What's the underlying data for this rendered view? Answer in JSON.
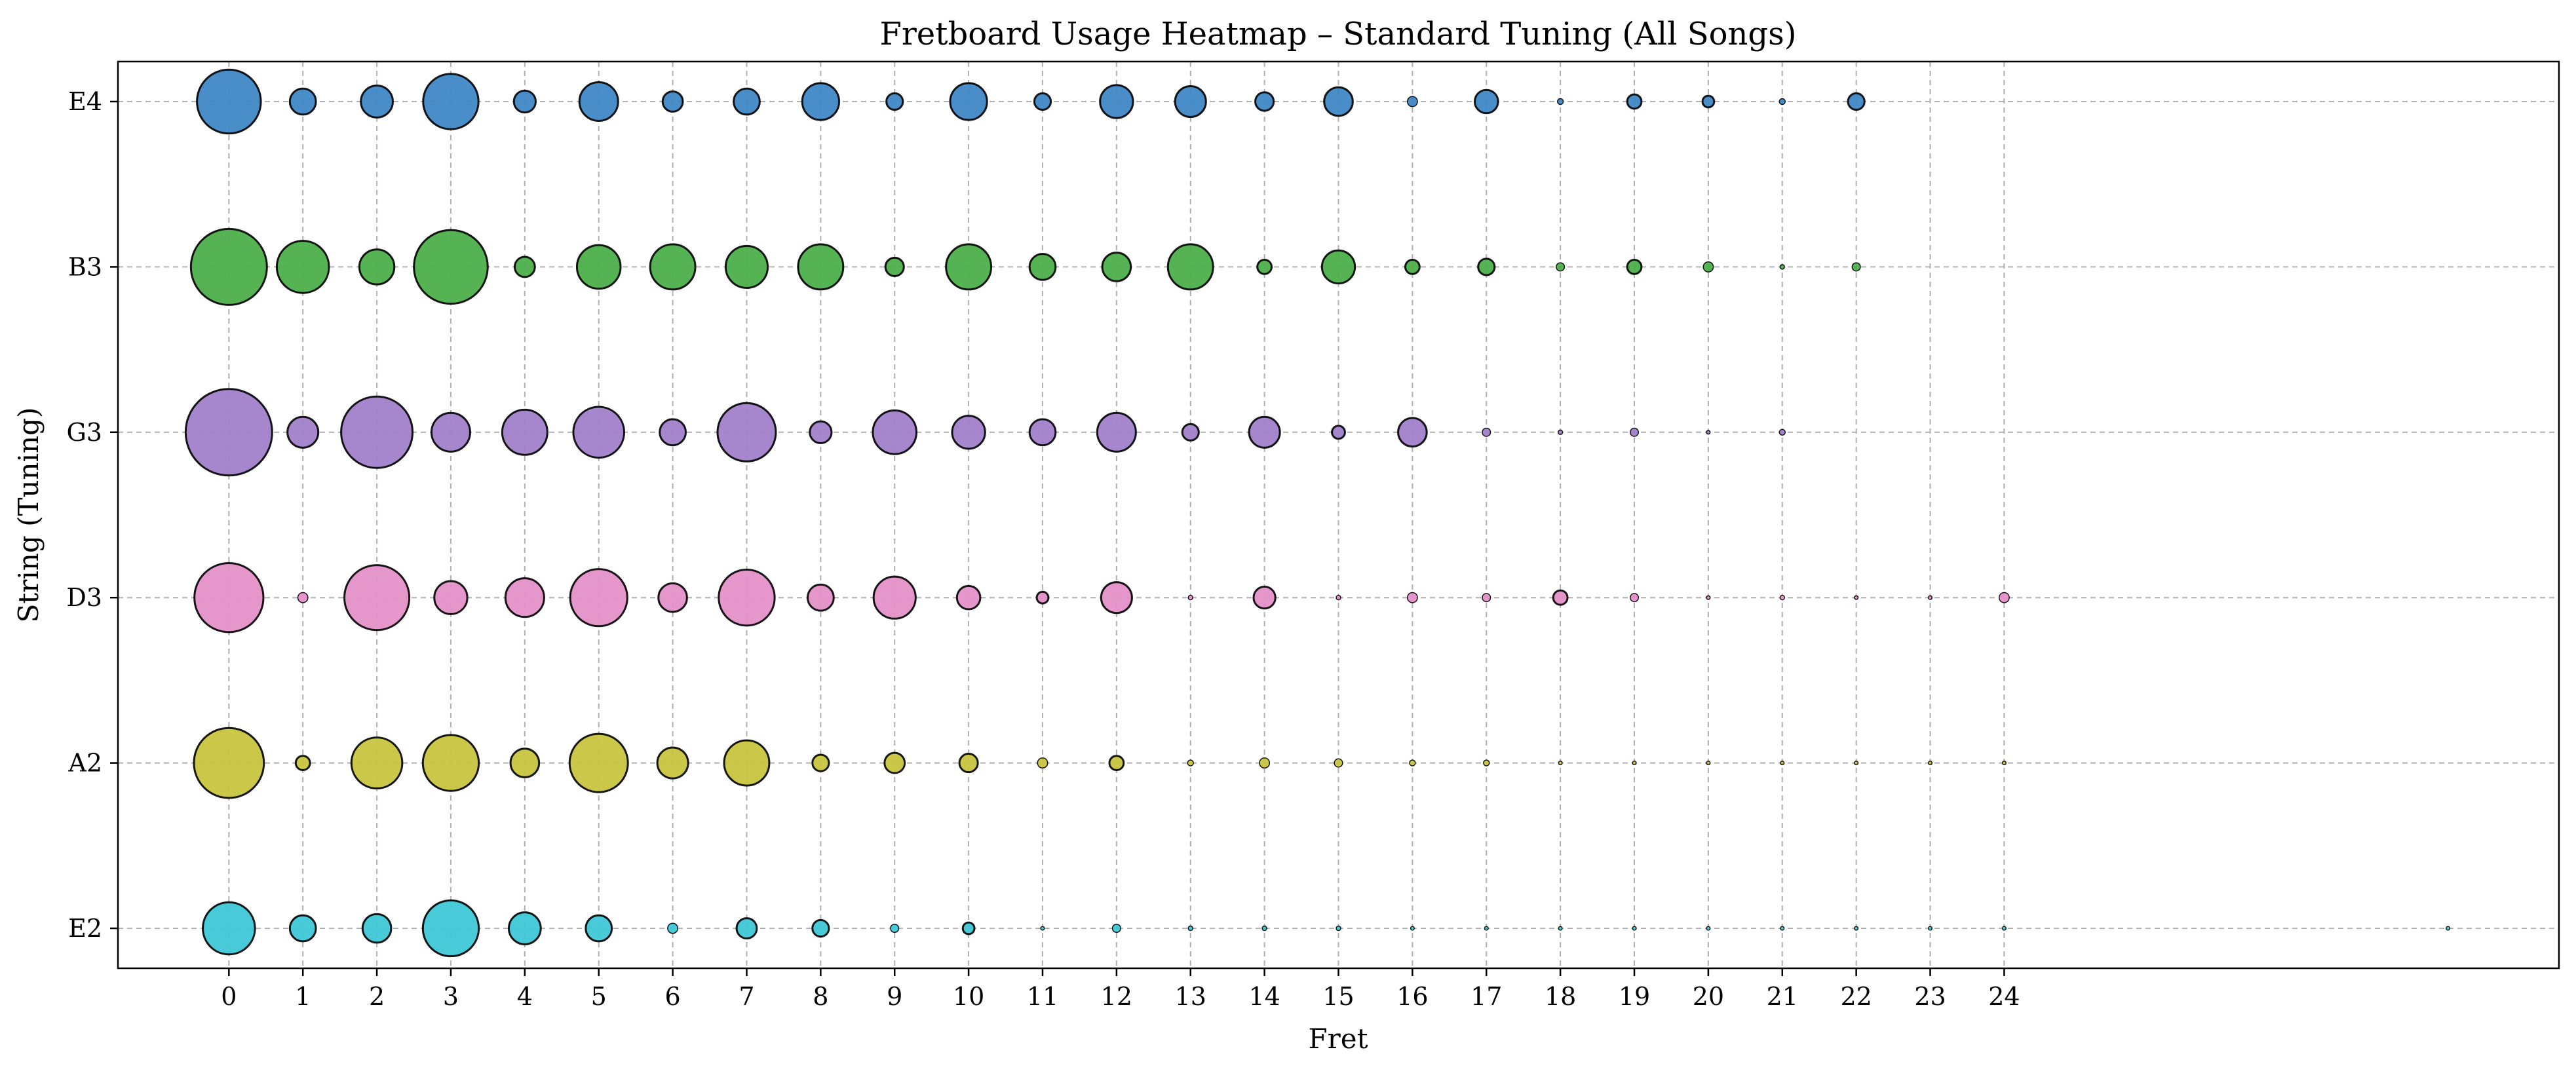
{
  "chart_data": {
    "type": "scatter",
    "title": "Fretboard Usage Heatmap – Standard Tuning (All Songs)",
    "xlabel": "Fret",
    "ylabel": "String (Tuning)",
    "x_ticks": [
      0,
      1,
      2,
      3,
      4,
      5,
      6,
      7,
      8,
      9,
      10,
      11,
      12,
      13,
      14,
      15,
      16,
      17,
      18,
      19,
      20,
      21,
      22,
      23,
      24
    ],
    "categories": [
      "E2",
      "A2",
      "D3",
      "G3",
      "B3",
      "E4"
    ],
    "xlim": [
      -1.5,
      31.5
    ],
    "grid": true,
    "size_meaning": "relative usage count per fret/string position",
    "series": [
      {
        "category": "E4",
        "color": "#3f88c5",
        "x": [
          0,
          1,
          2,
          3,
          4,
          5,
          6,
          7,
          8,
          9,
          10,
          11,
          12,
          13,
          14,
          15,
          16,
          17,
          18,
          19,
          20,
          21,
          22
        ],
        "values": [
          60,
          10,
          15,
          45,
          7,
          22,
          6,
          10,
          20,
          4,
          20,
          4,
          16,
          14,
          5,
          12,
          1.5,
          8,
          0.5,
          3,
          2,
          0.5,
          4
        ]
      },
      {
        "category": "B3",
        "color": "#4daf4a",
        "x": [
          0,
          1,
          2,
          3,
          4,
          5,
          6,
          7,
          8,
          9,
          10,
          11,
          12,
          13,
          14,
          15,
          16,
          17,
          18,
          19,
          20,
          21,
          22
        ],
        "values": [
          85,
          40,
          18,
          80,
          6,
          28,
          30,
          26,
          30,
          5,
          30,
          10,
          12,
          30,
          3,
          16,
          3,
          4,
          1,
          3,
          1.5,
          0.3,
          1
        ]
      },
      {
        "category": "G3",
        "color": "#a17fc9",
        "x": [
          0,
          1,
          2,
          3,
          4,
          5,
          6,
          7,
          8,
          9,
          10,
          11,
          12,
          13,
          14,
          15,
          16,
          17,
          18,
          19,
          20,
          21
        ],
        "values": [
          110,
          14,
          75,
          22,
          30,
          38,
          10,
          50,
          7,
          28,
          16,
          10,
          22,
          4,
          14,
          2.5,
          12,
          1,
          0.3,
          1,
          0.2,
          0.5
        ]
      },
      {
        "category": "D3",
        "color": "#e491c9",
        "x": [
          0,
          1,
          2,
          3,
          4,
          5,
          6,
          7,
          8,
          9,
          10,
          11,
          12,
          13,
          14,
          15,
          16,
          17,
          18,
          19,
          20,
          21,
          22,
          23,
          24
        ],
        "values": [
          70,
          1.5,
          62,
          16,
          22,
          48,
          12,
          46,
          10,
          26,
          8,
          2,
          14,
          0.3,
          7,
          0.3,
          1.5,
          1,
          3,
          1,
          0.2,
          0.3,
          0.2,
          0.2,
          1.5
        ]
      },
      {
        "category": "A2",
        "color": "#c7c43f",
        "x": [
          0,
          1,
          2,
          3,
          4,
          5,
          6,
          7,
          8,
          9,
          10,
          11,
          12,
          13,
          14,
          15,
          16,
          17,
          18,
          19,
          20,
          21,
          22,
          23,
          24
        ],
        "values": [
          72,
          3,
          38,
          46,
          12,
          50,
          14,
          30,
          4,
          6,
          5,
          1.5,
          3,
          0.5,
          1.5,
          1,
          0.5,
          0.5,
          0.2,
          0.2,
          0.2,
          0.2,
          0.2,
          0.2,
          0.2
        ]
      },
      {
        "category": "E2",
        "color": "#3ec7d6",
        "x": [
          0,
          1,
          2,
          3,
          4,
          5,
          6,
          7,
          8,
          9,
          10,
          11,
          12,
          13,
          14,
          15,
          16,
          17,
          18,
          19,
          20,
          21,
          22,
          23,
          24,
          30
        ],
        "values": [
          40,
          10,
          12,
          46,
          15,
          10,
          1.5,
          6,
          4,
          1,
          2,
          0.2,
          1,
          0.3,
          0.3,
          0.3,
          0.2,
          0.2,
          0.2,
          0.2,
          0.2,
          0.2,
          0.2,
          0.2,
          0.2,
          0.2
        ]
      }
    ]
  }
}
